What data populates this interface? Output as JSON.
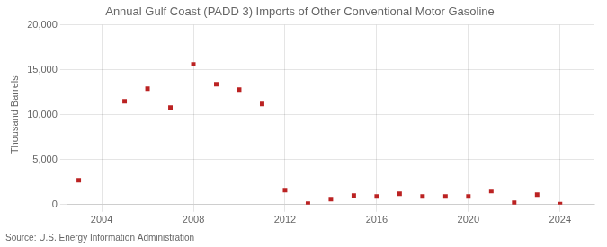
{
  "chart_data": {
    "type": "scatter",
    "title": "Annual Gulf Coast (PADD 3) Imports of Other Conventional Motor Gasoline",
    "y_label": "Thousand Barrels",
    "annotations": [
      "Source: U.S. Energy Information Administration"
    ],
    "x": [
      2003,
      2005,
      2006,
      2007,
      2008,
      2009,
      2010,
      2011,
      2012,
      2013,
      2014,
      2015,
      2016,
      2017,
      2018,
      2019,
      2020,
      2021,
      2022,
      2023,
      2024
    ],
    "values": [
      2700,
      11500,
      12900,
      10800,
      15600,
      13400,
      12800,
      11200,
      1600,
      100,
      600,
      1000,
      900,
      1200,
      900,
      900,
      900,
      1500,
      200,
      1100,
      50
    ],
    "color": "#bb2222",
    "marker": "square",
    "xlim": [
      2002.5,
      2025.5
    ],
    "xticks": [
      2004,
      2008,
      2012,
      2016,
      2020,
      2024
    ],
    "ylim": [
      0,
      20000
    ],
    "yticks": [
      0,
      {
        "value": 5000,
        "label": "5,000"
      },
      {
        "value": 10000,
        "label": "10,000"
      },
      {
        "value": 15000,
        "label": "15,000"
      },
      {
        "value": 20000,
        "label": "20,000"
      }
    ],
    "grid": true
  }
}
